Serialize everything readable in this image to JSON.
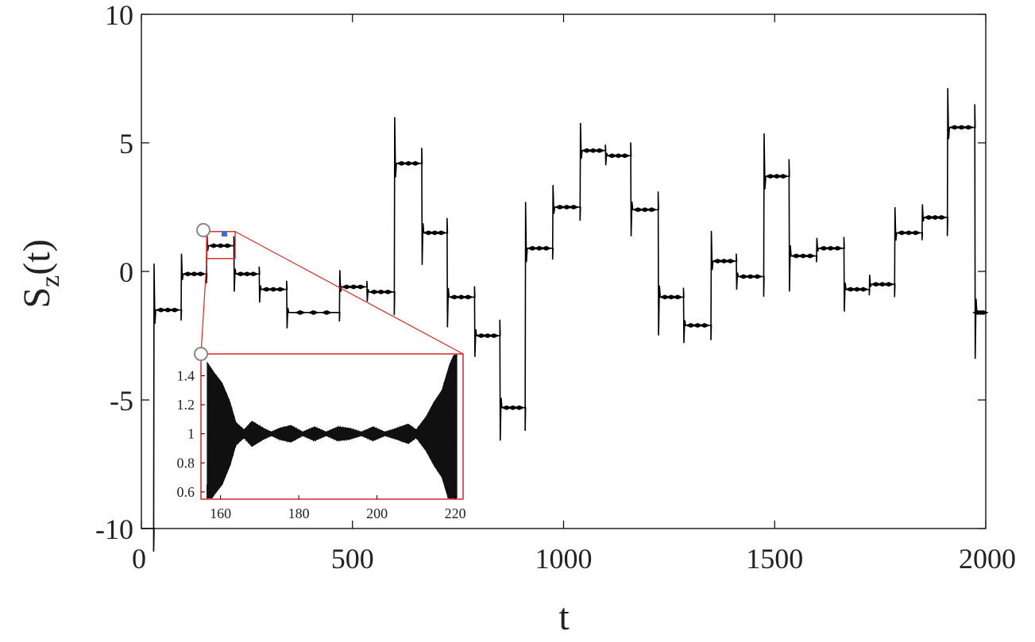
{
  "chart_data": [
    {
      "type": "line",
      "title": "",
      "xlabel": "t",
      "ylabel_main": "S",
      "ylabel_sub": "z",
      "ylabel_tail": "(t)",
      "xlim": [
        0,
        2000
      ],
      "ylim": [
        -10,
        10
      ],
      "xticks": [
        "0",
        "500",
        "1000",
        "1500",
        "2000"
      ],
      "yticks": [
        "10",
        "5",
        "0",
        "-5",
        "-10"
      ],
      "xtick_values": [
        0,
        500,
        1000,
        1500,
        2000
      ],
      "ytick_values": [
        10,
        5,
        0,
        -5,
        -10
      ],
      "grid": false,
      "series_color": "#000000",
      "steps": [
        {
          "t0": 0,
          "t1": 30,
          "y": -10
        },
        {
          "t0": 30,
          "t1": 95,
          "y": -1.5
        },
        {
          "t0": 95,
          "t1": 155,
          "y": -0.1
        },
        {
          "t0": 155,
          "t1": 220,
          "y": 1.0
        },
        {
          "t0": 220,
          "t1": 280,
          "y": -0.1
        },
        {
          "t0": 280,
          "t1": 345,
          "y": -0.7
        },
        {
          "t0": 345,
          "t1": 470,
          "y": -1.6
        },
        {
          "t0": 470,
          "t1": 535,
          "y": -0.6
        },
        {
          "t0": 535,
          "t1": 600,
          "y": -0.8
        },
        {
          "t0": 600,
          "t1": 665,
          "y": 4.2
        },
        {
          "t0": 665,
          "t1": 725,
          "y": 1.5
        },
        {
          "t0": 725,
          "t1": 790,
          "y": -1.0
        },
        {
          "t0": 790,
          "t1": 850,
          "y": -2.5
        },
        {
          "t0": 850,
          "t1": 910,
          "y": -5.3
        },
        {
          "t0": 910,
          "t1": 975,
          "y": 0.9
        },
        {
          "t0": 975,
          "t1": 1040,
          "y": 2.5
        },
        {
          "t0": 1040,
          "t1": 1100,
          "y": 4.7
        },
        {
          "t0": 1100,
          "t1": 1160,
          "y": 4.5
        },
        {
          "t0": 1160,
          "t1": 1225,
          "y": 2.4
        },
        {
          "t0": 1225,
          "t1": 1285,
          "y": -1.0
        },
        {
          "t0": 1285,
          "t1": 1350,
          "y": -2.1
        },
        {
          "t0": 1350,
          "t1": 1410,
          "y": 0.4
        },
        {
          "t0": 1410,
          "t1": 1475,
          "y": -0.2
        },
        {
          "t0": 1475,
          "t1": 1535,
          "y": 3.7
        },
        {
          "t0": 1535,
          "t1": 1600,
          "y": 0.6
        },
        {
          "t0": 1600,
          "t1": 1665,
          "y": 0.9
        },
        {
          "t0": 1665,
          "t1": 1725,
          "y": -0.7
        },
        {
          "t0": 1725,
          "t1": 1785,
          "y": -0.5
        },
        {
          "t0": 1785,
          "t1": 1850,
          "y": 1.5
        },
        {
          "t0": 1850,
          "t1": 1910,
          "y": 2.1
        },
        {
          "t0": 1910,
          "t1": 1975,
          "y": 5.6
        },
        {
          "t0": 1975,
          "t1": 2000,
          "y": -1.6
        }
      ],
      "zoom_region": {
        "t0": 155,
        "t1": 222,
        "y0": 0.5,
        "y1": 1.55
      }
    },
    {
      "type": "line",
      "title": "",
      "xlabel": "",
      "ylabel": "",
      "xlim": [
        155,
        222
      ],
      "ylim": [
        0.55,
        1.55
      ],
      "xticks": [
        "160",
        "180",
        "200",
        "220"
      ],
      "yticks": [
        "1.4",
        "1.2",
        "1",
        "0.8",
        "0.6"
      ],
      "xtick_values": [
        160,
        180,
        200,
        220
      ],
      "ytick_values": [
        1.4,
        1.2,
        1.0,
        0.8,
        0.6
      ],
      "grid": false,
      "frame_color": "#d62728",
      "series_color": "#000000",
      "mean": 1.0,
      "envelope": [
        {
          "t": 156.5,
          "a": 0.5
        },
        {
          "t": 158.5,
          "a": 0.42
        },
        {
          "t": 160.5,
          "a": 0.35
        },
        {
          "t": 162.5,
          "a": 0.22
        },
        {
          "t": 164,
          "a": 0.08
        },
        {
          "t": 166,
          "a": 0.03
        },
        {
          "t": 168,
          "a": 0.09
        },
        {
          "t": 171,
          "a": 0.04
        },
        {
          "t": 173,
          "a": 0.015
        },
        {
          "t": 175,
          "a": 0.04
        },
        {
          "t": 178,
          "a": 0.06
        },
        {
          "t": 181,
          "a": 0.015
        },
        {
          "t": 184,
          "a": 0.05
        },
        {
          "t": 187,
          "a": 0.015
        },
        {
          "t": 190,
          "a": 0.05
        },
        {
          "t": 193,
          "a": 0.04
        },
        {
          "t": 196,
          "a": 0.015
        },
        {
          "t": 199,
          "a": 0.05
        },
        {
          "t": 202,
          "a": 0.015
        },
        {
          "t": 205,
          "a": 0.04
        },
        {
          "t": 208,
          "a": 0.07
        },
        {
          "t": 210,
          "a": 0.03
        },
        {
          "t": 212.5,
          "a": 0.12
        },
        {
          "t": 214.5,
          "a": 0.22
        },
        {
          "t": 216.5,
          "a": 0.3
        },
        {
          "t": 218.5,
          "a": 0.48
        },
        {
          "t": 220.5,
          "a": 0.6
        }
      ]
    }
  ]
}
